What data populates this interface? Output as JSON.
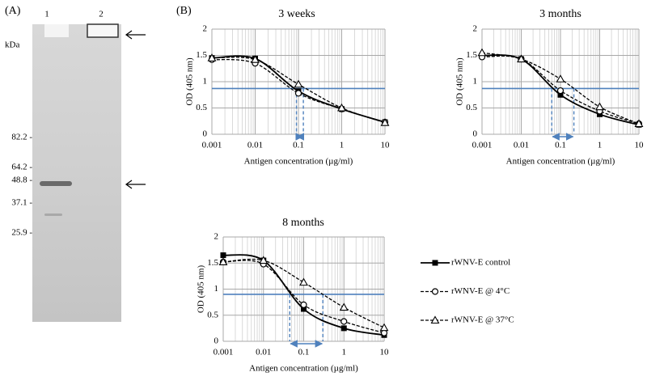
{
  "panel_a": {
    "label": "(A)",
    "lanes": [
      "1",
      "2"
    ],
    "unit": "kDa",
    "markers": [
      "82.2 -",
      "64.2 -",
      "48.8 -",
      "37.1 -",
      "25.9 -"
    ]
  },
  "panel_b": {
    "label": "(B)"
  },
  "chart_data": [
    {
      "type": "line",
      "title": "3 weeks",
      "x_label": "Antigen concentration (µg/ml)",
      "y_label": "OD (405 nm)",
      "xscale": "log",
      "xlim": [
        0.001,
        10
      ],
      "xticks": [
        0.001,
        0.01,
        0.1,
        1,
        10
      ],
      "ylim": [
        0,
        2
      ],
      "yticks": [
        0,
        0.5,
        1,
        1.5,
        2
      ],
      "grid": true,
      "x": [
        0.001,
        0.01,
        0.1,
        1,
        10
      ],
      "series": [
        {
          "color": "#000000",
          "marker": "square",
          "dash": false,
          "values": [
            1.45,
            1.44,
            0.82,
            0.48,
            0.23
          ]
        },
        {
          "color": "#000000",
          "marker": "circle",
          "dash": true,
          "values": [
            1.42,
            1.35,
            0.78,
            0.48,
            0.23
          ]
        },
        {
          "color": "#000000",
          "marker": "triangle",
          "dash": true,
          "values": [
            1.45,
            1.42,
            0.95,
            0.5,
            0.22
          ]
        }
      ],
      "cutoff": 0.87,
      "cutoff_x": [
        0.09,
        0.13
      ],
      "cutoff_color": "#4f81bd"
    },
    {
      "type": "line",
      "title": "3 months",
      "x_label": "Antigen concentration (µg/ml)",
      "y_label": "OD (405 nm)",
      "xscale": "log",
      "xlim": [
        0.001,
        10
      ],
      "xticks": [
        0.001,
        0.01,
        0.1,
        1,
        10
      ],
      "ylim": [
        0,
        2
      ],
      "yticks": [
        0,
        0.5,
        1,
        1.5,
        2
      ],
      "grid": true,
      "x": [
        0.001,
        0.01,
        0.1,
        1,
        10
      ],
      "series": [
        {
          "color": "#000000",
          "marker": "square",
          "dash": false,
          "values": [
            1.5,
            1.43,
            0.75,
            0.38,
            0.18
          ]
        },
        {
          "color": "#000000",
          "marker": "circle",
          "dash": true,
          "values": [
            1.47,
            1.43,
            0.83,
            0.44,
            0.2
          ]
        },
        {
          "color": "#000000",
          "marker": "triangle",
          "dash": true,
          "values": [
            1.55,
            1.43,
            1.05,
            0.52,
            0.2
          ]
        }
      ],
      "cutoff": 0.87,
      "cutoff_x": [
        0.06,
        0.22
      ],
      "cutoff_color": "#4f81bd"
    },
    {
      "type": "line",
      "title": "8 months",
      "x_label": "Antigen concentration (µg/ml)",
      "y_label": "OD (405 nm)",
      "xscale": "log",
      "xlim": [
        0.001,
        10
      ],
      "xticks": [
        0.001,
        0.01,
        0.1,
        1,
        10
      ],
      "ylim": [
        0,
        2
      ],
      "yticks": [
        0,
        0.5,
        1,
        1.5,
        2
      ],
      "grid": true,
      "x": [
        0.001,
        0.01,
        0.1,
        1,
        10
      ],
      "series": [
        {
          "name": "rWNV-E control",
          "color": "#000000",
          "marker": "square",
          "dash": false,
          "values": [
            1.65,
            1.55,
            0.62,
            0.25,
            0.12
          ]
        },
        {
          "name": "rWNV-E @ 4°C",
          "color": "#000000",
          "marker": "circle",
          "dash": true,
          "values": [
            1.52,
            1.48,
            0.7,
            0.38,
            0.16
          ]
        },
        {
          "name": "rWNV-E @ 37°C",
          "color": "#000000",
          "marker": "triangle",
          "dash": true,
          "values": [
            1.52,
            1.55,
            1.13,
            0.65,
            0.26
          ]
        }
      ],
      "cutoff": 0.9,
      "cutoff_x": [
        0.045,
        0.3
      ],
      "cutoff_color": "#4f81bd",
      "legend": "right"
    }
  ]
}
